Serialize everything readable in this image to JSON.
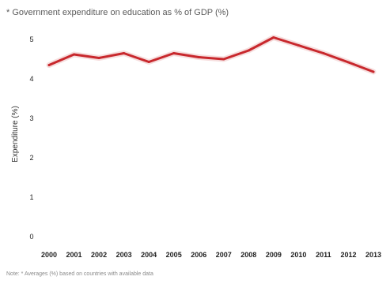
{
  "chart_data": {
    "type": "line",
    "title": "* Government expenditure on education as % of GDP (%)",
    "ylabel": "Expenditure (%)",
    "xlabel": "",
    "x": [
      "2000",
      "2001",
      "2002",
      "2003",
      "2004",
      "2005",
      "2006",
      "2007",
      "2008",
      "2009",
      "2010",
      "2011",
      "2012",
      "2013"
    ],
    "yticks": [
      "0",
      "1",
      "2",
      "3",
      "4",
      "5"
    ],
    "ylim": [
      0,
      5.2
    ],
    "series": [
      {
        "values": [
          4.35,
          4.62,
          4.53,
          4.65,
          4.43,
          4.65,
          4.55,
          4.5,
          4.72,
          5.05,
          4.85,
          4.65,
          4.42,
          4.18
        ]
      }
    ],
    "grid": false,
    "note": "Note: * Averages (%) based on countries with available data",
    "colors": {
      "line": "#c8282d",
      "line_shadow": "#f0c8c8",
      "tick_text": "#222222",
      "axis_label": "#333333"
    }
  }
}
